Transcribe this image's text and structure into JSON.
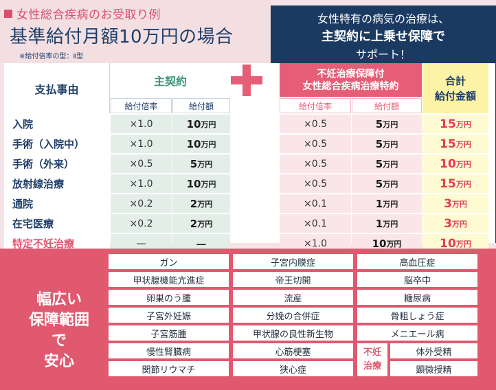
{
  "header": {
    "label": "女性総合疾病のお受取り例",
    "title": "基準給付月額10万円の場合",
    "note": "※給付倍率の型：Ⅱ型"
  },
  "banner": {
    "line1": "女性特有の病気の治療は、",
    "line2": "主契約に上乗せ保障で",
    "line3": "サポート！"
  },
  "table": {
    "pay_header": "支払事由",
    "main_header": "主契約",
    "special_header_1": "不妊治療保障付",
    "special_header_2": "女性総合疾病治療特約",
    "total_header_1": "合計",
    "total_header_2": "給付金額",
    "sub_mult": "給付倍率",
    "sub_amt": "給付額",
    "rows": [
      {
        "name": "入院",
        "mult": "×1.0",
        "amt": "10",
        "smult": "×0.5",
        "samt": "5",
        "total": "15"
      },
      {
        "name": "手術（入院中）",
        "mult": "×1.0",
        "amt": "10",
        "smult": "×0.5",
        "samt": "5",
        "total": "15"
      },
      {
        "name": "手術（外来）",
        "mult": "×0.5",
        "amt": "5",
        "smult": "×0.5",
        "samt": "5",
        "total": "10"
      },
      {
        "name": "放射線治療",
        "mult": "×1.0",
        "amt": "10",
        "smult": "×0.5",
        "samt": "5",
        "total": "15"
      },
      {
        "name": "通院",
        "mult": "×0.2",
        "amt": "2",
        "smult": "×0.1",
        "samt": "1",
        "total": "3"
      },
      {
        "name": "在宅医療",
        "mult": "×0.2",
        "amt": "2",
        "smult": "×0.1",
        "samt": "1",
        "total": "3"
      },
      {
        "name": "特定不妊治療",
        "mult": "—",
        "amt": "—",
        "smult": "×1.0",
        "samt": "10",
        "total": "10"
      }
    ],
    "unit": "万円"
  },
  "coverage": {
    "title_1": "幅広い",
    "title_2": "保障範囲で",
    "title_3": "安心",
    "diseases": [
      "ガン",
      "子宮内膜症",
      "高血圧症",
      "甲状腺機能亢進症",
      "帝王切開",
      "脳卒中",
      "卵巣のう腫",
      "流産",
      "糖尿病",
      "子宮外妊娠",
      "分娩の合併症",
      "骨粗しょう症",
      "子宮筋腫",
      "甲状腺の良性新生物",
      "メニエール病",
      "慢性腎臓病",
      "心筋梗塞",
      "関節リウマチ",
      "狭心症"
    ],
    "fertility_label_1": "不妊",
    "fertility_label_2": "治療",
    "fertility_items": [
      "体外受精",
      "顕微授精"
    ]
  },
  "colors": {
    "navy": "#1a3a62",
    "pink": "#e0596f",
    "green": "#41947a",
    "yellow": "#fdf3a6"
  }
}
